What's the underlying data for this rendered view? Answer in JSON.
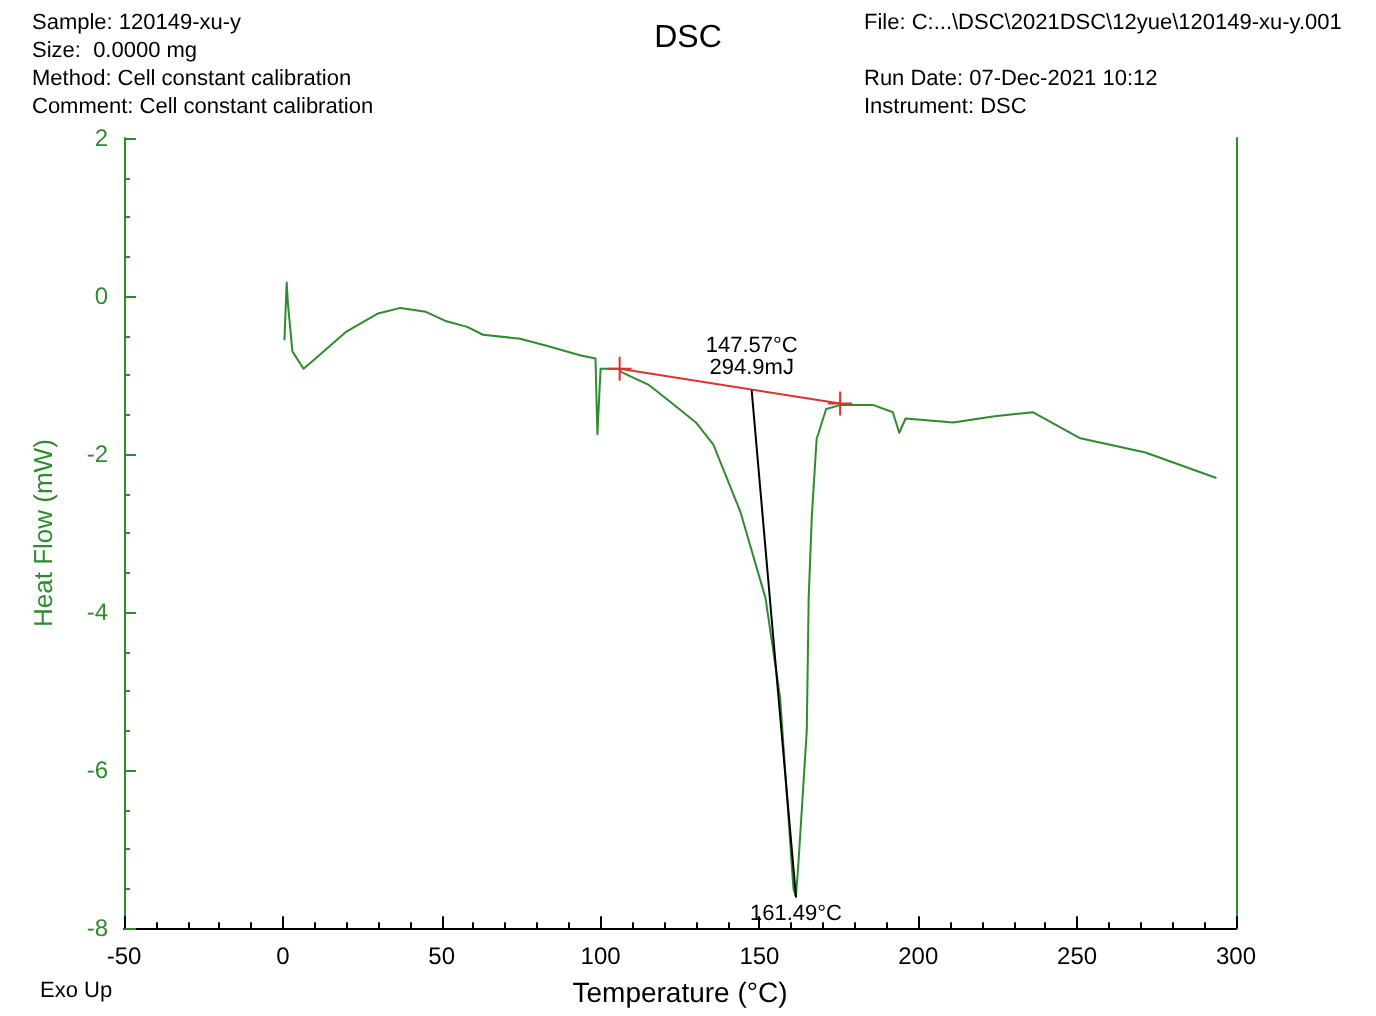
{
  "chart_data": {
    "type": "line",
    "title": "DSC",
    "xlabel": "Temperature (°C)",
    "ylabel": "Heat Flow (mW)",
    "xlim": [
      -50,
      300
    ],
    "xticks": [
      -50,
      0,
      50,
      100,
      150,
      200,
      250,
      300
    ],
    "ylim": [
      -8,
      2
    ],
    "yticks": [
      -8,
      -6,
      -4,
      -2,
      0,
      2
    ],
    "grid": false,
    "marker": "none",
    "line_style": "solid",
    "series": [
      {
        "color": "#2e8b2e",
        "x": [
          0.5,
          1.2,
          1.6,
          3,
          6.5,
          10,
          20,
          30,
          37,
          45,
          51.5,
          58,
          63,
          74.7,
          83,
          93.5,
          98.4,
          99,
          100,
          106,
          106.4,
          115,
          122,
          130,
          135.5,
          144,
          151.9,
          156.5,
          160.7,
          161.49,
          162.3,
          164.9,
          165.5,
          166.5,
          168,
          171,
          175.4,
          185.9,
          192,
          194,
          196,
          211,
          224,
          236,
          251,
          271.5,
          293.6
        ],
        "values": [
          -0.55,
          0.17,
          -0.1,
          -0.7,
          -0.92,
          -0.8,
          -0.45,
          -0.22,
          -0.15,
          -0.2,
          -0.32,
          -0.39,
          -0.49,
          -0.54,
          -0.63,
          -0.75,
          -0.79,
          -1.75,
          -0.92,
          -0.92,
          -0.96,
          -1.12,
          -1.34,
          -1.6,
          -1.88,
          -2.73,
          -3.82,
          -5.08,
          -7.5,
          -7.6,
          -7.16,
          -5.5,
          -3.82,
          -2.78,
          -1.81,
          -1.43,
          -1.38,
          -1.38,
          -1.47,
          -1.73,
          -1.55,
          -1.6,
          -1.52,
          -1.47,
          -1.8,
          -1.98,
          -2.3
        ]
      },
      {
        "color": "#e03030",
        "marker": "cross",
        "x": [
          106,
          175.4
        ],
        "values": [
          -0.92,
          -1.36
        ]
      },
      {
        "color": "#000000",
        "x": [
          147.57,
          161.49
        ],
        "values": [
          -1.2,
          -7.6
        ]
      }
    ],
    "annotations": [
      "Sample: 120149-xu-y",
      "Size:  0.0000 mg",
      "Method: Cell constant calibration",
      "Comment: Cell constant calibration",
      "File: C:...\\DSC\\2021DSC\\12yue\\120149-xu-y.001",
      "Run Date: 07-Dec-2021 10:12",
      "Instrument: DSC",
      "Exo Up",
      {
        "text": "147.57°C\n294.9mJ",
        "x": 147.57,
        "y": -1.2
      },
      {
        "text": "161.49°C",
        "x": 161.49,
        "y": -7.6
      }
    ]
  }
}
